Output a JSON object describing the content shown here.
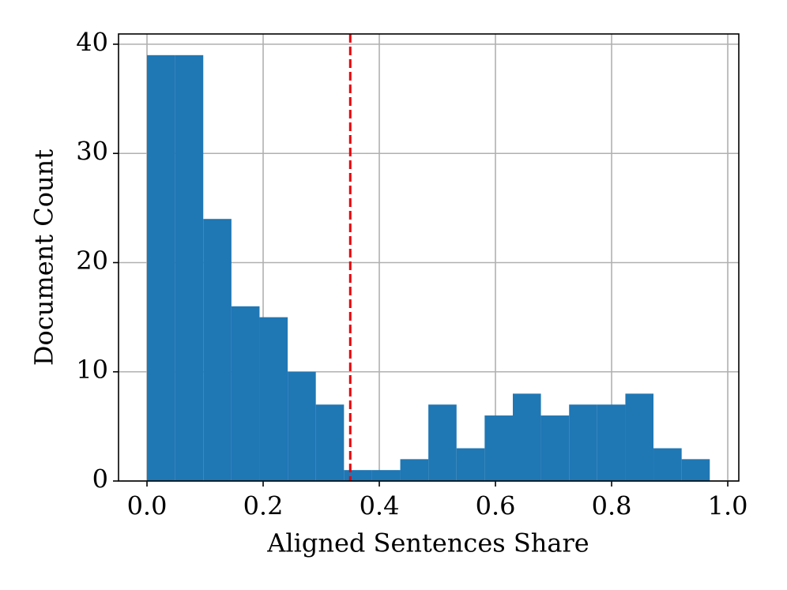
{
  "chart_data": {
    "type": "histogram",
    "xlabel": "Aligned Sentences Share",
    "ylabel": "Document Count",
    "bins": [
      0,
      0.0485,
      0.0969,
      0.1454,
      0.1938,
      0.2423,
      0.2907,
      0.3392,
      0.3876,
      0.4361,
      0.4845,
      0.533,
      0.5814,
      0.6299,
      0.6783,
      0.7268,
      0.7752,
      0.8237,
      0.8721,
      0.9206,
      0.969
    ],
    "counts": [
      39,
      39,
      24,
      16,
      15,
      10,
      7,
      1,
      1,
      2,
      7,
      3,
      6,
      8,
      6,
      7,
      7,
      8,
      3,
      2
    ],
    "color": "#1f77b4",
    "xlim": [
      -0.049,
      1.019
    ],
    "ylim": [
      0,
      40.94
    ],
    "xticks": [
      {
        "value": 0,
        "label": "0.0"
      },
      0.2,
      0.4,
      0.6,
      0.8,
      {
        "value": 1,
        "label": "1.0"
      }
    ],
    "yticks": [
      0,
      10,
      20,
      30,
      40
    ],
    "grid": true,
    "vline": {
      "x": 0.35,
      "color": "#e8000b",
      "style": "dashed"
    }
  }
}
